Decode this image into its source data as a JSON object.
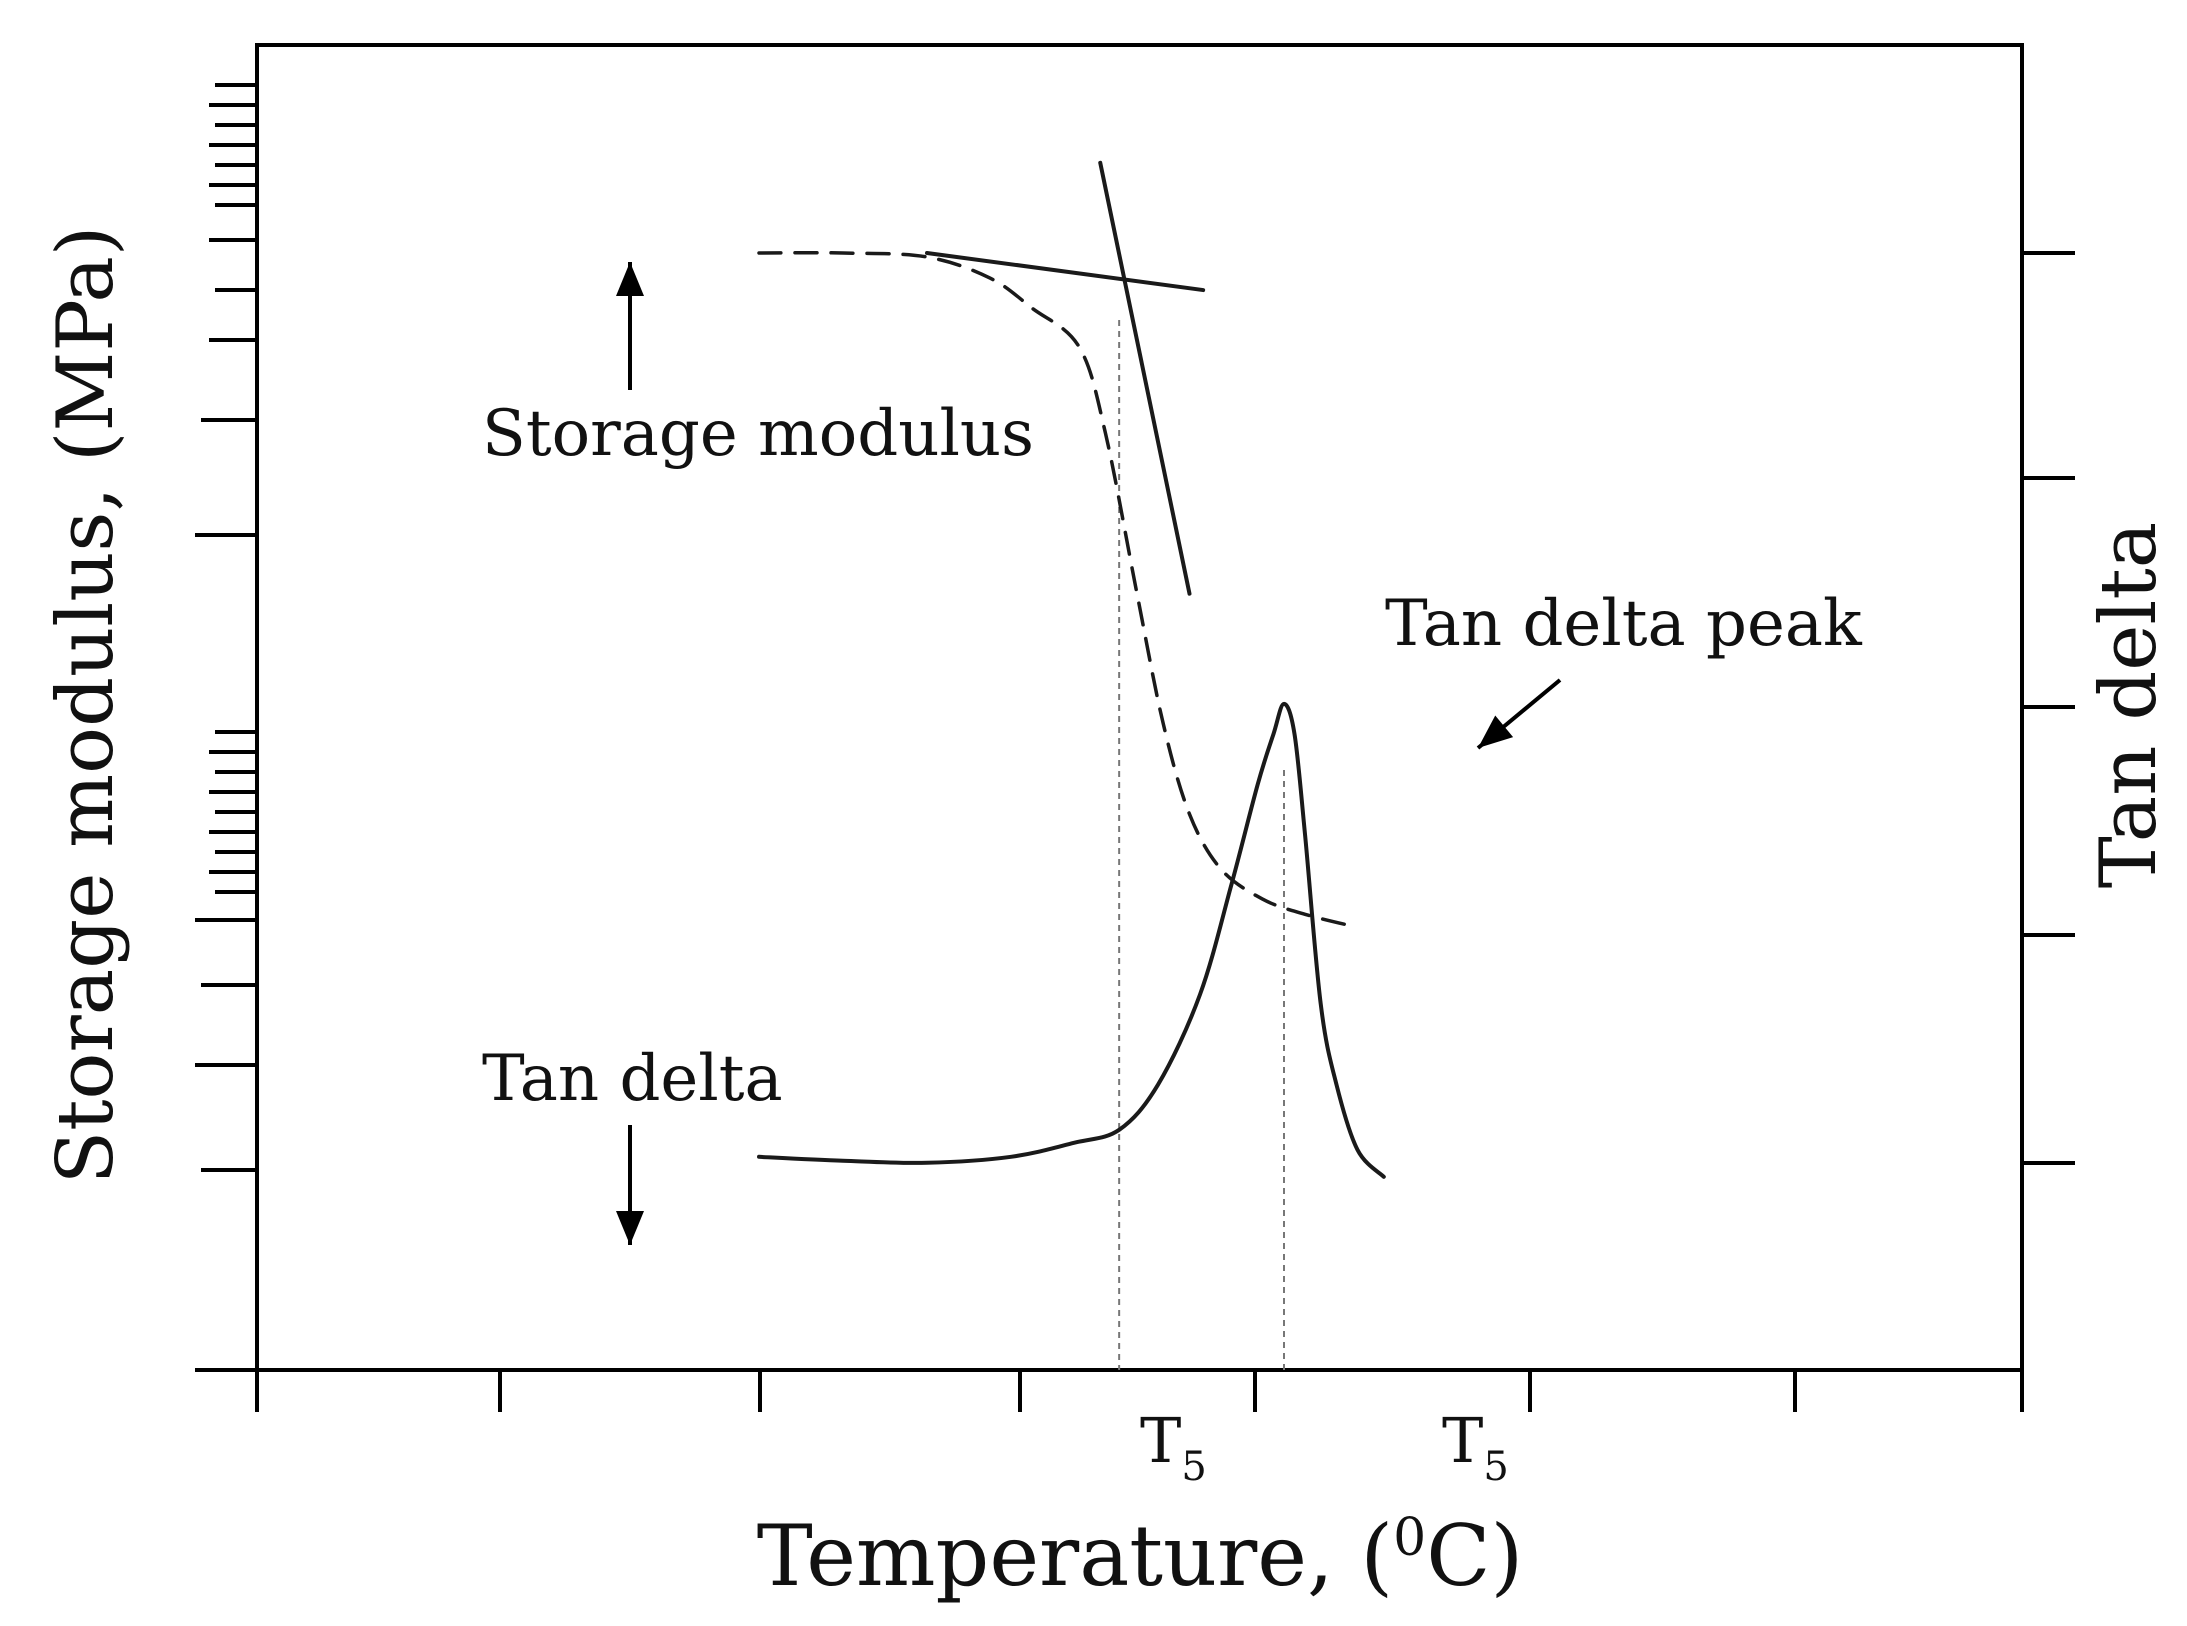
{
  "chart_data": {
    "type": "line",
    "xlabel": "Temperature, (",
    "xlabel_sup": "0",
    "xlabel_end": "C)",
    "ylabel_left": "Storage modulus, (MPa)",
    "ylabel_right": "Tan delta",
    "x_ticks": [
      {
        "label": "T",
        "sub": "5"
      },
      {
        "label": "T",
        "sub": "5"
      }
    ],
    "annotations": {
      "storage_modulus": "Storage modulus",
      "tan_delta": "Tan delta",
      "tan_delta_peak": "Tan delta peak"
    },
    "axes": {
      "x_range": [
        0,
        100
      ],
      "y_range": [
        0,
        100
      ],
      "grid": false
    },
    "series": [
      {
        "name": "Storage modulus",
        "style": "dashed",
        "x": [
          18,
          26,
          34,
          40,
          44,
          48.5,
          51,
          54,
          56.5,
          59,
          62,
          66,
          70,
          75
        ],
        "y": [
          100,
          100,
          99.6,
          97.5,
          94.5,
          90.6,
          82,
          66,
          53,
          44,
          38.5,
          35.5,
          34,
          32.7
        ]
      },
      {
        "name": "Tan delta",
        "style": "solid",
        "x": [
          18,
          26,
          34,
          42,
          48,
          52.3,
          56,
          60,
          63,
          65.5,
          67,
          68,
          69,
          70,
          71.5,
          73,
          75,
          77.5
        ],
        "y": [
          9.8,
          9.4,
          9.2,
          9.8,
          11.2,
          12.5,
          17,
          26,
          37,
          47,
          52,
          55,
          52,
          42,
          25,
          17,
          10.5,
          7.8
        ]
      },
      {
        "name": "Storage modulus plateau tangent",
        "style": "solid",
        "x": [
          34,
          60.3
        ],
        "y": [
          100,
          96.3
        ]
      },
      {
        "name": "Storage modulus drop tangent",
        "style": "solid",
        "x": [
          50.5,
          59
        ],
        "y": [
          109,
          66
        ]
      }
    ],
    "markers": {
      "onset_x": 52.3,
      "peak_x": 68
    }
  }
}
